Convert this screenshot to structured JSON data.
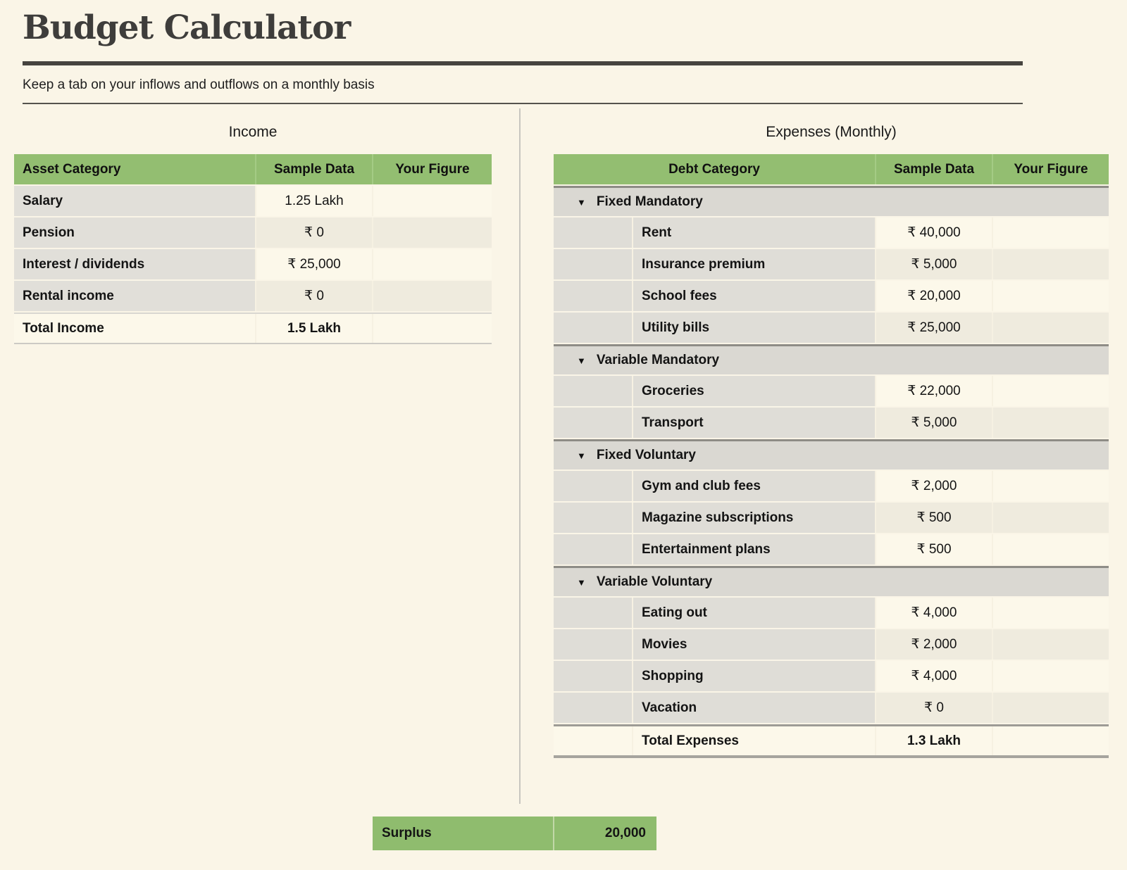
{
  "header": {
    "title": "Budget Calculator",
    "subtitle": "Keep a tab on your inflows and outflows on a monthly basis"
  },
  "income": {
    "heading": "Income",
    "columns": [
      "Asset Category",
      "Sample Data",
      "Your Figure"
    ],
    "rows": [
      {
        "label": "Salary",
        "sample": "1.25 Lakh",
        "your_figure": ""
      },
      {
        "label": "Pension",
        "sample": "₹ 0",
        "your_figure": ""
      },
      {
        "label": "Interest / dividends",
        "sample": "₹ 25,000",
        "your_figure": ""
      },
      {
        "label": "Rental income",
        "sample": "₹ 0",
        "your_figure": ""
      }
    ],
    "total": {
      "label": "Total Income",
      "sample": "1.5 Lakh",
      "your_figure": ""
    }
  },
  "expenses": {
    "heading": "Expenses (Monthly)",
    "columns": [
      "Debt Category",
      "Sample Data",
      "Your Figure"
    ],
    "collapse_icon": "▼",
    "sections": [
      {
        "label": "Fixed Mandatory",
        "items": [
          {
            "label": "Rent",
            "sample": "₹ 40,000",
            "your_figure": ""
          },
          {
            "label": "Insurance premium",
            "sample": "₹ 5,000",
            "your_figure": ""
          },
          {
            "label": "School fees",
            "sample": "₹ 20,000",
            "your_figure": ""
          },
          {
            "label": "Utility bills",
            "sample": "₹ 25,000",
            "your_figure": ""
          }
        ]
      },
      {
        "label": "Variable Mandatory",
        "items": [
          {
            "label": "Groceries",
            "sample": "₹ 22,000",
            "your_figure": ""
          },
          {
            "label": "Transport",
            "sample": "₹ 5,000",
            "your_figure": ""
          }
        ]
      },
      {
        "label": "Fixed Voluntary",
        "items": [
          {
            "label": "Gym and club fees",
            "sample": "₹ 2,000",
            "your_figure": ""
          },
          {
            "label": "Magazine subscriptions",
            "sample": "₹ 500",
            "your_figure": ""
          },
          {
            "label": "Entertainment plans",
            "sample": "₹ 500",
            "your_figure": ""
          }
        ]
      },
      {
        "label": "Variable Voluntary",
        "items": [
          {
            "label": "Eating out",
            "sample": "₹ 4,000",
            "your_figure": ""
          },
          {
            "label": "Movies",
            "sample": "₹ 2,000",
            "your_figure": ""
          },
          {
            "label": "Shopping",
            "sample": "₹ 4,000",
            "your_figure": ""
          },
          {
            "label": "Vacation",
            "sample": "₹ 0",
            "your_figure": ""
          }
        ]
      }
    ],
    "total": {
      "label": "Total Expenses",
      "sample": "1.3 Lakh",
      "your_figure": ""
    }
  },
  "surplus": {
    "label": "Surplus",
    "value": "20,000"
  },
  "colors": {
    "header_green": "#93BE71",
    "surplus_green": "#8FBC6E",
    "page_background": "#FAF5E7"
  }
}
